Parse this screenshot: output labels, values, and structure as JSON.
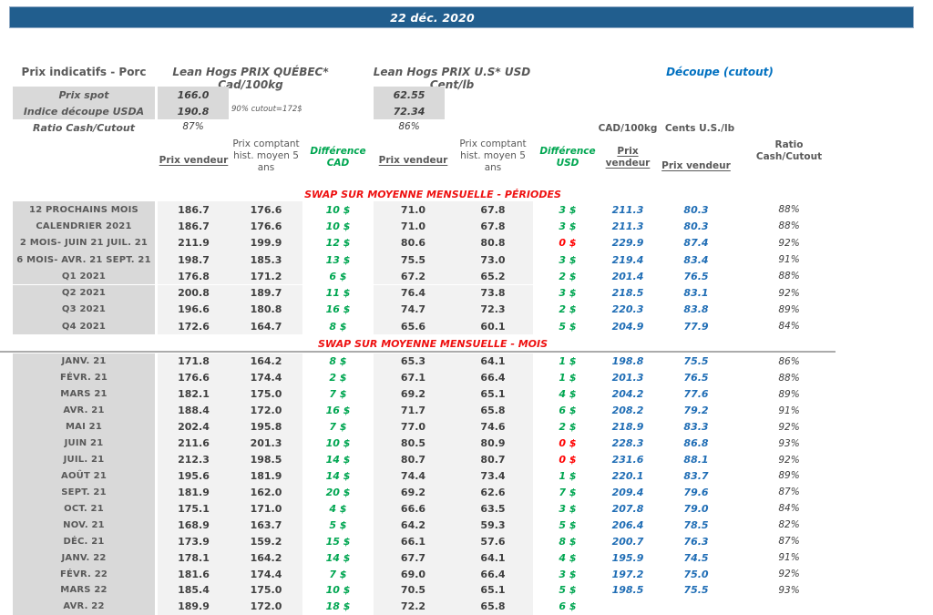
{
  "date_bar": {
    "date": "22 déc. 2020"
  },
  "header": {
    "title": "Prix indicatifs - Porc",
    "quebec_title": "Lean Hogs PRIX QUÉBEC* Cad/100kg",
    "us_title": "Lean Hogs PRIX U.S* USD Cent/lb",
    "cutout_title": "Découpe (cutout)",
    "spot_label": "Prix spot",
    "spot_cad": "166.0",
    "spot_usd": "62.55",
    "usda_label": "Indice découpe USDA",
    "usda_cad": "190.8",
    "usda_usd": "72.34",
    "usda_note": "90% cutout=172$",
    "ratio_label": "Ratio Cash/Cutout",
    "ratio_cad": "87%",
    "ratio_usd": "86%"
  },
  "columns": {
    "prix_vendeur": "Prix vendeur",
    "prix_comptant": "Prix comptant\nhist. moyen 5\nans",
    "diff_cad": "Différence\nCAD",
    "diff_usd": "Différence\nUSD",
    "cad_100kg": "CAD/100kg",
    "cents_us_lb": "Cents U.S./lb",
    "prix_vendeur_2line": "Prix\nvendeur",
    "ratio_head": "Ratio\nCash/Cutout"
  },
  "colors": {
    "bar_blue": "#215E8E",
    "text_blue": "#1F6DB5",
    "green": "#00A651",
    "red": "#FF0000",
    "label_bg": "#D9D9D9",
    "band_bg": "#F2F2F2"
  },
  "sections": [
    {
      "title": "SWAP SUR MOYENNE MENSUELLE - PÉRIODES",
      "rows": [
        {
          "label": "12 PROCHAINS MOIS",
          "pv_cad": "186.7",
          "pc_cad": "176.6",
          "d_cad": "10 $",
          "pv_usd": "71.0",
          "pc_usd": "67.8",
          "d_usd": "3 $",
          "cut_cad": "211.3",
          "cut_lb": "80.3",
          "ratio": "88%"
        },
        {
          "label": "CALENDRIER 2021",
          "pv_cad": "186.7",
          "pc_cad": "176.6",
          "d_cad": "10 $",
          "pv_usd": "71.0",
          "pc_usd": "67.8",
          "d_usd": "3 $",
          "cut_cad": "211.3",
          "cut_lb": "80.3",
          "ratio": "88%"
        },
        {
          "label": "2 MOIS- JUIN 21 JUIL. 21",
          "pv_cad": "211.9",
          "pc_cad": "199.9",
          "d_cad": "12 $",
          "pv_usd": "80.6",
          "pc_usd": "80.8",
          "d_usd": "0 $",
          "d_usd_red": true,
          "cut_cad": "229.9",
          "cut_lb": "87.4",
          "ratio": "92%"
        },
        {
          "label": "6 MOIS- AVR. 21 SEPT. 21",
          "pv_cad": "198.7",
          "pc_cad": "185.3",
          "d_cad": "13 $",
          "pv_usd": "75.5",
          "pc_usd": "73.0",
          "d_usd": "3 $",
          "cut_cad": "219.4",
          "cut_lb": "83.4",
          "ratio": "91%"
        },
        {
          "label": "Q1 2021",
          "pv_cad": "176.8",
          "pc_cad": "171.2",
          "d_cad": "6 $",
          "pv_usd": "67.2",
          "pc_usd": "65.2",
          "d_usd": "2 $",
          "cut_cad": "201.4",
          "cut_lb": "76.5",
          "ratio": "88%"
        },
        {
          "label": "Q2 2021",
          "pv_cad": "200.8",
          "pc_cad": "189.7",
          "d_cad": "11 $",
          "pv_usd": "76.4",
          "pc_usd": "73.8",
          "d_usd": "3 $",
          "cut_cad": "218.5",
          "cut_lb": "83.1",
          "ratio": "92%"
        },
        {
          "label": "Q3 2021",
          "pv_cad": "196.6",
          "pc_cad": "180.8",
          "d_cad": "16 $",
          "pv_usd": "74.7",
          "pc_usd": "72.3",
          "d_usd": "2 $",
          "cut_cad": "220.3",
          "cut_lb": "83.8",
          "ratio": "89%"
        },
        {
          "label": "Q4 2021",
          "pv_cad": "172.6",
          "pc_cad": "164.7",
          "d_cad": "8 $",
          "pv_usd": "65.6",
          "pc_usd": "60.1",
          "d_usd": "5 $",
          "cut_cad": "204.9",
          "cut_lb": "77.9",
          "ratio": "84%"
        }
      ]
    },
    {
      "title": "SWAP SUR MOYENNE MENSUELLE - MOIS",
      "rows": [
        {
          "label": "JANV. 21",
          "pv_cad": "171.8",
          "pc_cad": "164.2",
          "d_cad": "8 $",
          "pv_usd": "65.3",
          "pc_usd": "64.1",
          "d_usd": "1 $",
          "cut_cad": "198.8",
          "cut_lb": "75.5",
          "ratio": "86%"
        },
        {
          "label": "FÉVR. 21",
          "pv_cad": "176.6",
          "pc_cad": "174.4",
          "d_cad": "2 $",
          "pv_usd": "67.1",
          "pc_usd": "66.4",
          "d_usd": "1 $",
          "cut_cad": "201.3",
          "cut_lb": "76.5",
          "ratio": "88%"
        },
        {
          "label": "MARS 21",
          "pv_cad": "182.1",
          "pc_cad": "175.0",
          "d_cad": "7 $",
          "pv_usd": "69.2",
          "pc_usd": "65.1",
          "d_usd": "4 $",
          "cut_cad": "204.2",
          "cut_lb": "77.6",
          "ratio": "89%"
        },
        {
          "label": "AVR. 21",
          "pv_cad": "188.4",
          "pc_cad": "172.0",
          "d_cad": "16 $",
          "pv_usd": "71.7",
          "pc_usd": "65.8",
          "d_usd": "6 $",
          "cut_cad": "208.2",
          "cut_lb": "79.2",
          "ratio": "91%"
        },
        {
          "label": "MAI 21",
          "pv_cad": "202.4",
          "pc_cad": "195.8",
          "d_cad": "7 $",
          "pv_usd": "77.0",
          "pc_usd": "74.6",
          "d_usd": "2 $",
          "cut_cad": "218.9",
          "cut_lb": "83.3",
          "ratio": "92%"
        },
        {
          "label": "JUIN 21",
          "pv_cad": "211.6",
          "pc_cad": "201.3",
          "d_cad": "10 $",
          "pv_usd": "80.5",
          "pc_usd": "80.9",
          "d_usd": "0 $",
          "d_usd_red": true,
          "cut_cad": "228.3",
          "cut_lb": "86.8",
          "ratio": "93%"
        },
        {
          "label": "JUIL. 21",
          "pv_cad": "212.3",
          "pc_cad": "198.5",
          "d_cad": "14 $",
          "pv_usd": "80.7",
          "pc_usd": "80.7",
          "d_usd": "0 $",
          "d_usd_red": true,
          "cut_cad": "231.6",
          "cut_lb": "88.1",
          "ratio": "92%"
        },
        {
          "label": "AOÛT 21",
          "pv_cad": "195.6",
          "pc_cad": "181.9",
          "d_cad": "14 $",
          "pv_usd": "74.4",
          "pc_usd": "73.4",
          "d_usd": "1 $",
          "cut_cad": "220.1",
          "cut_lb": "83.7",
          "ratio": "89%"
        },
        {
          "label": "SEPT. 21",
          "pv_cad": "181.9",
          "pc_cad": "162.0",
          "d_cad": "20 $",
          "pv_usd": "69.2",
          "pc_usd": "62.6",
          "d_usd": "7 $",
          "cut_cad": "209.4",
          "cut_lb": "79.6",
          "ratio": "87%"
        },
        {
          "label": "OCT. 21",
          "pv_cad": "175.1",
          "pc_cad": "171.0",
          "d_cad": "4 $",
          "pv_usd": "66.6",
          "pc_usd": "63.5",
          "d_usd": "3 $",
          "cut_cad": "207.8",
          "cut_lb": "79.0",
          "ratio": "84%"
        },
        {
          "label": "NOV. 21",
          "pv_cad": "168.9",
          "pc_cad": "163.7",
          "d_cad": "5 $",
          "pv_usd": "64.2",
          "pc_usd": "59.3",
          "d_usd": "5 $",
          "cut_cad": "206.4",
          "cut_lb": "78.5",
          "ratio": "82%"
        },
        {
          "label": "DÉC. 21",
          "pv_cad": "173.9",
          "pc_cad": "159.2",
          "d_cad": "15 $",
          "pv_usd": "66.1",
          "pc_usd": "57.6",
          "d_usd": "8 $",
          "cut_cad": "200.7",
          "cut_lb": "76.3",
          "ratio": "87%"
        },
        {
          "label": "JANV. 22",
          "pv_cad": "178.1",
          "pc_cad": "164.2",
          "d_cad": "14 $",
          "pv_usd": "67.7",
          "pc_usd": "64.1",
          "d_usd": "4 $",
          "cut_cad": "195.9",
          "cut_lb": "74.5",
          "ratio": "91%"
        },
        {
          "label": "FÉVR. 22",
          "pv_cad": "181.6",
          "pc_cad": "174.4",
          "d_cad": "7 $",
          "pv_usd": "69.0",
          "pc_usd": "66.4",
          "d_usd": "3 $",
          "cut_cad": "197.2",
          "cut_lb": "75.0",
          "ratio": "92%"
        },
        {
          "label": "MARS 22",
          "pv_cad": "185.4",
          "pc_cad": "175.0",
          "d_cad": "10 $",
          "pv_usd": "70.5",
          "pc_usd": "65.1",
          "d_usd": "5 $",
          "cut_cad": "198.5",
          "cut_lb": "75.5",
          "ratio": "93%"
        },
        {
          "label": "AVR. 22",
          "pv_cad": "189.9",
          "pc_cad": "172.0",
          "d_cad": "18 $",
          "pv_usd": "72.2",
          "pc_usd": "65.8",
          "d_usd": "6 $",
          "cut_cad": "",
          "cut_lb": "",
          "ratio": ""
        }
      ]
    }
  ]
}
